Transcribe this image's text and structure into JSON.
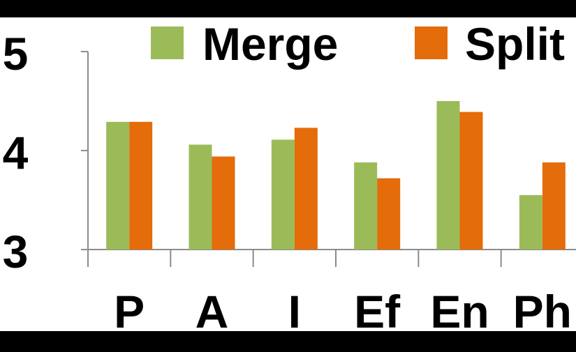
{
  "chart_data": {
    "type": "bar",
    "categories": [
      "P",
      "A",
      "I",
      "Ef",
      "En",
      "Ph"
    ],
    "series": [
      {
        "name": "Merge",
        "color": "#9bbb59",
        "values": [
          4.29,
          4.06,
          4.11,
          3.88,
          4.5,
          3.55
        ]
      },
      {
        "name": "Split",
        "color": "#e46c0a",
        "values": [
          4.29,
          3.94,
          4.23,
          3.72,
          4.39,
          3.88
        ]
      }
    ],
    "ylim": [
      3,
      5
    ],
    "yticks": [
      "3",
      "4",
      "5"
    ],
    "legend_position": "top",
    "grid": false,
    "title": "",
    "xlabel": "",
    "ylabel": ""
  }
}
